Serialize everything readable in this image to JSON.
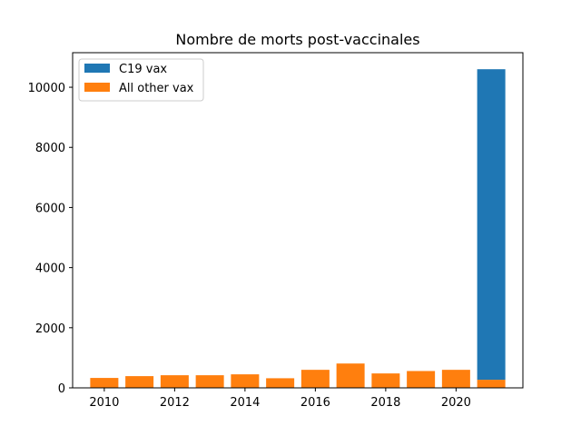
{
  "chart_data": {
    "type": "bar",
    "title": "Nombre de morts post-vaccinales",
    "xlabel": "",
    "ylabel": "",
    "categories": [
      2010,
      2011,
      2012,
      2013,
      2014,
      2015,
      2016,
      2017,
      2018,
      2019,
      2020,
      2021
    ],
    "stacked": true,
    "series": [
      {
        "name": "All other vax",
        "color": "#ff7f0e",
        "values": [
          330,
          390,
          420,
          420,
          450,
          320,
          600,
          810,
          480,
          560,
          600,
          270
        ]
      },
      {
        "name": "C19 vax",
        "color": "#1f77b4",
        "values": [
          0,
          0,
          0,
          0,
          0,
          0,
          0,
          0,
          0,
          0,
          0,
          10330
        ]
      }
    ],
    "xlim": [
      2009.1,
      2021.9
    ],
    "ylim": [
      0,
      11150
    ],
    "xticks": [
      2010,
      2012,
      2014,
      2016,
      2018,
      2020
    ],
    "yticks": [
      0,
      2000,
      4000,
      6000,
      8000,
      10000
    ],
    "grid": false,
    "legend": {
      "placement": "top-left",
      "entries": [
        "C19 vax",
        "All other vax"
      ]
    }
  }
}
